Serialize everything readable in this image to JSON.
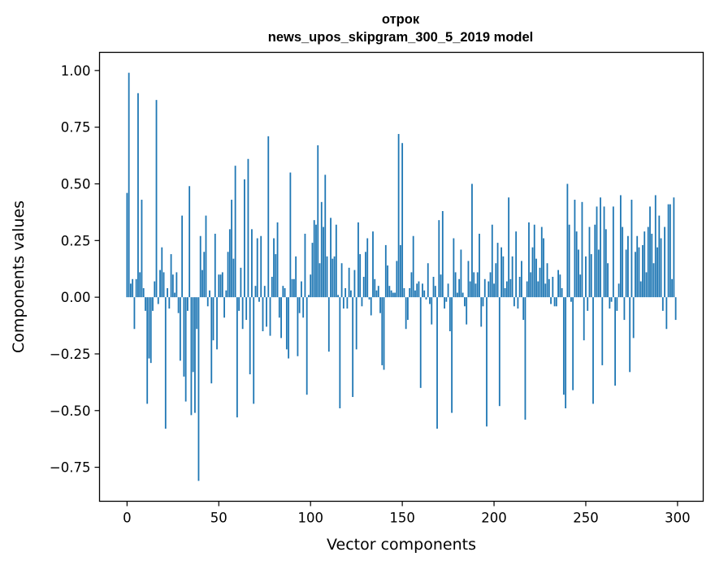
{
  "chart_data": {
    "type": "bar",
    "title_line1": "отрок",
    "title_line2": "news_upos_skipgram_300_5_2019 model",
    "xlabel": "Vector components",
    "ylabel": "Components values",
    "xlim": [
      -15,
      314
    ],
    "ylim": [
      -0.9,
      1.08
    ],
    "x_ticks": [
      0,
      50,
      100,
      150,
      200,
      250,
      300
    ],
    "x_tick_labels": [
      "0",
      "50",
      "100",
      "150",
      "200",
      "250",
      "300"
    ],
    "y_ticks": [
      1.0,
      0.75,
      0.5,
      0.25,
      0.0,
      -0.25,
      -0.5,
      -0.75
    ],
    "y_tick_labels": [
      "1.00",
      "0.75",
      "0.50",
      "0.25",
      "0.00",
      "−0.25",
      "−0.50",
      "−0.75"
    ],
    "grid": false,
    "bar_color": "#1f77b4",
    "values": [
      0.46,
      0.99,
      0.06,
      0.08,
      -0.14,
      0.08,
      0.9,
      0.11,
      0.43,
      0.04,
      -0.06,
      -0.47,
      -0.27,
      -0.29,
      -0.06,
      0.07,
      0.87,
      -0.03,
      0.12,
      0.22,
      0.11,
      -0.58,
      0.04,
      -0.05,
      0.19,
      0.1,
      0.02,
      0.11,
      -0.07,
      -0.28,
      0.36,
      -0.35,
      -0.46,
      -0.06,
      0.49,
      -0.52,
      -0.33,
      -0.51,
      -0.14,
      -0.81,
      0.27,
      0.12,
      0.2,
      0.36,
      -0.04,
      0.03,
      -0.38,
      -0.19,
      0.28,
      -0.23,
      0.1,
      0.1,
      0.11,
      -0.09,
      0.03,
      0.2,
      0.3,
      0.43,
      0.17,
      0.58,
      -0.53,
      -0.06,
      0.13,
      -0.14,
      0.52,
      -0.1,
      0.61,
      -0.34,
      0.3,
      -0.47,
      0.05,
      0.26,
      -0.02,
      0.27,
      -0.15,
      0.05,
      -0.13,
      0.71,
      -0.17,
      0.09,
      0.26,
      0.19,
      0.33,
      -0.09,
      -0.18,
      0.05,
      0.04,
      -0.23,
      -0.27,
      0.55,
      0.08,
      0.08,
      0.18,
      -0.26,
      -0.07,
      0.07,
      -0.09,
      0.28,
      -0.43,
      0.01,
      0.1,
      0.24,
      0.34,
      0.32,
      0.67,
      0.15,
      0.42,
      0.31,
      0.54,
      0.18,
      -0.24,
      0.35,
      0.17,
      0.18,
      0.32,
      0.01,
      -0.49,
      0.15,
      -0.05,
      0.04,
      -0.05,
      0.13,
      0.03,
      -0.44,
      0.12,
      -0.23,
      0.33,
      0.19,
      -0.04,
      0.09,
      0.2,
      0.26,
      -0.01,
      -0.08,
      0.29,
      0.08,
      0.03,
      0.05,
      -0.07,
      -0.3,
      -0.32,
      0.23,
      0.14,
      0.05,
      0.03,
      0.02,
      0.02,
      0.16,
      0.72,
      0.23,
      0.68,
      0.04,
      -0.14,
      -0.1,
      0.04,
      0.11,
      0.27,
      0.03,
      0.06,
      0.07,
      -0.4,
      0.06,
      0.03,
      -0.01,
      0.15,
      -0.03,
      -0.12,
      0.09,
      0.05,
      -0.58,
      0.34,
      0.1,
      0.38,
      -0.05,
      -0.02,
      0.06,
      -0.15,
      -0.51,
      0.26,
      0.11,
      0.02,
      0.08,
      0.21,
      0.02,
      -0.04,
      -0.12,
      0.16,
      0.07,
      0.5,
      0.11,
      0.06,
      0.11,
      0.28,
      -0.13,
      -0.04,
      0.08,
      -0.57,
      0.07,
      0.11,
      0.32,
      0.06,
      0.15,
      0.24,
      -0.48,
      0.22,
      0.18,
      0.04,
      0.07,
      0.44,
      0.08,
      0.18,
      -0.04,
      0.29,
      -0.05,
      0.09,
      0.16,
      -0.1,
      -0.54,
      0.07,
      0.33,
      0.11,
      0.22,
      0.32,
      0.17,
      0.07,
      0.13,
      0.31,
      0.26,
      0.06,
      0.15,
      0.08,
      -0.03,
      0.09,
      -0.04,
      -0.04,
      0.12,
      0.1,
      0.04,
      -0.43,
      -0.49,
      0.5,
      0.32,
      -0.02,
      -0.41,
      0.43,
      0.29,
      0.21,
      0.1,
      0.42,
      -0.19,
      0.18,
      -0.06,
      0.31,
      0.19,
      -0.47,
      0.32,
      0.4,
      0.21,
      0.44,
      -0.3,
      0.4,
      0.3,
      0.15,
      -0.05,
      -0.02,
      0.4,
      -0.39,
      -0.06,
      0.06,
      0.45,
      0.31,
      -0.1,
      0.21,
      0.27,
      -0.33,
      0.43,
      -0.18,
      0.2,
      0.27,
      0.22,
      0.07,
      0.23,
      0.29,
      0.11,
      0.31,
      0.4,
      0.28,
      0.15,
      0.45,
      0.22,
      0.36,
      0.26,
      -0.06,
      0.31,
      -0.14,
      0.41,
      0.41,
      0.08,
      0.44,
      -0.1
    ]
  }
}
